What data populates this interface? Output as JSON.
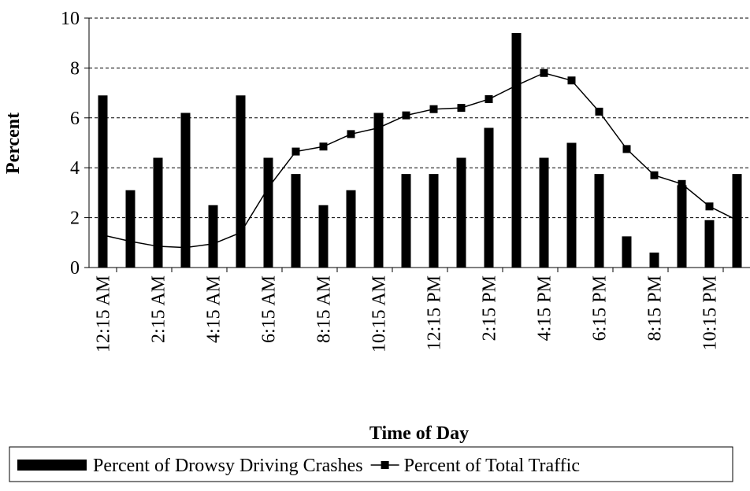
{
  "chart_data": {
    "type": "bar_line",
    "x_label": "Time of Day",
    "y_label": "Percent",
    "categories": [
      "12:15 AM",
      null,
      "2:15 AM",
      null,
      "4:15 AM",
      null,
      "6:15 AM",
      null,
      "8:15 AM",
      null,
      "10:15 AM",
      null,
      "12:15 PM",
      null,
      "2:15 PM",
      null,
      "4:15 PM",
      null,
      "6:15 PM",
      null,
      "8:15 PM",
      null,
      "10:15 PM",
      null
    ],
    "series": [
      {
        "name": "Percent of Drowsy Driving Crashes",
        "type": "bar",
        "color": "#000000",
        "values": [
          6.9,
          3.1,
          4.4,
          6.2,
          2.5,
          6.9,
          4.4,
          3.75,
          2.5,
          3.1,
          6.2,
          3.75,
          3.75,
          4.4,
          5.6,
          9.4,
          4.4,
          5.0,
          3.75,
          1.25,
          0.6,
          3.3,
          1.9,
          3.75
        ]
      },
      {
        "name": "Percent of Total Traffic",
        "type": "line",
        "color": "#000000",
        "values": [
          1.3,
          1.05,
          0.85,
          0.8,
          0.95,
          1.4,
          3.2,
          4.65,
          4.85,
          5.35,
          5.6,
          6.1,
          6.35,
          6.4,
          6.75,
          7.3,
          7.8,
          7.5,
          6.25,
          4.75,
          3.7,
          3.35,
          2.45,
          1.9
        ]
      }
    ],
    "ylim": [
      0,
      10
    ],
    "yticks": [
      0,
      2,
      4,
      6,
      8,
      10
    ],
    "grid": true,
    "legend": "bottom"
  }
}
